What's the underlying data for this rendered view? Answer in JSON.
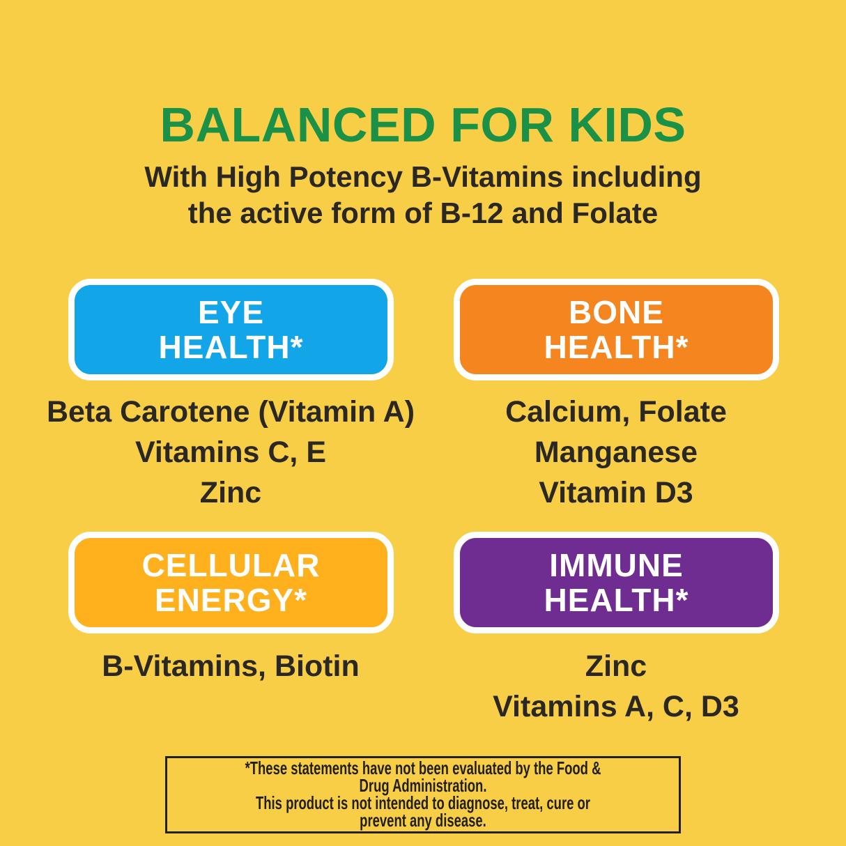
{
  "colors": {
    "background": "#F7CE45",
    "title_green": "#1A9147",
    "body_text": "#2B2723",
    "card_title_text": "#FFFFFF",
    "card_border": "#FFFFFF",
    "disclaimer_border": "#231F1C"
  },
  "header": {
    "title": "BALANCED FOR KIDS",
    "subtitle": "With High Potency B-Vitamins including\nthe active form of B-12 and Folate"
  },
  "cards": [
    {
      "name": "eye-health",
      "title": "EYE\nHEALTH*",
      "color": "#12A6E9",
      "ingredients": "Beta Carotene (Vitamin A)\nVitamins C, E\nZinc"
    },
    {
      "name": "bone-health",
      "title": "BONE\nHEALTH*",
      "color": "#F5861F",
      "ingredients": "Calcium, Folate\nManganese\nVitamin D3"
    },
    {
      "name": "cellular-energy",
      "title": "CELLULAR\nENERGY*",
      "color": "#FEB01D",
      "ingredients": "B-Vitamins, Biotin"
    },
    {
      "name": "immune-health",
      "title": "IMMUNE\nHEALTH*",
      "color": "#6F2C91",
      "ingredients": "Zinc\nVitamins A, C, D3"
    }
  ],
  "disclaimer": "*These statements have not been evaluated by the Food & Drug Administration.\nThis product is not intended to diagnose, treat, cure or prevent any disease."
}
